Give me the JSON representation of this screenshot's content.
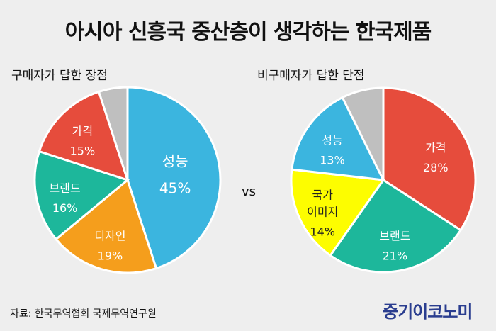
{
  "title": "아시아 신흥국 중산층이 생각하는 한국제품",
  "vs_label": "vs",
  "source": "자료: 한국무역협회 국제무역연구원",
  "logo": "중기이코노미",
  "chart_data": [
    {
      "type": "pie",
      "title": "구매자가 답한 장점",
      "slices": [
        {
          "label": "성능",
          "value": 45,
          "value_label": "45%",
          "color": "#3bb5df"
        },
        {
          "label": "디자인",
          "value": 19,
          "value_label": "19%",
          "color": "#f59e1c"
        },
        {
          "label": "브랜드",
          "value": 16,
          "value_label": "16%",
          "color": "#1db79b"
        },
        {
          "label": "가격",
          "value": 15,
          "value_label": "15%",
          "color": "#e64c3c"
        },
        {
          "label": "",
          "value": 5,
          "value_label": "",
          "color": "#bfbfbf"
        }
      ]
    },
    {
      "type": "pie",
      "title": "비구매자가 답한 단점",
      "slices": [
        {
          "label": "가격",
          "value": 28,
          "value_label": "28%",
          "color": "#e64c3c"
        },
        {
          "label": "브랜드",
          "value": 21,
          "value_label": "21%",
          "color": "#1db79b"
        },
        {
          "label": "국가 이미지",
          "label_lines": [
            "국가",
            "이미지"
          ],
          "value": 14,
          "value_label": "14%",
          "color": "#fdfd00"
        },
        {
          "label": "성능",
          "value": 13,
          "value_label": "13%",
          "color": "#3bb5df"
        },
        {
          "label": "",
          "value": 6,
          "value_label": "",
          "color": "#bfbfbf"
        }
      ]
    }
  ]
}
